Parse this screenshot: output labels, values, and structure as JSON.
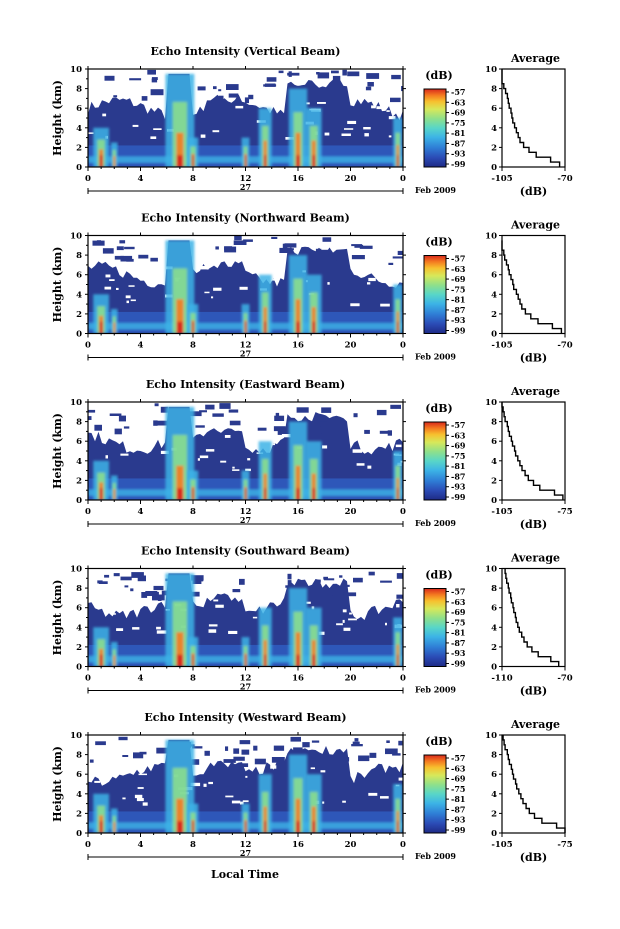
{
  "chart_data": {
    "type": "heatmap",
    "date_label": "Feb 2009",
    "day_label": "27",
    "xlabel": "Local Time",
    "ylabel": "Height (km)",
    "x_ticks": [
      "0",
      "4",
      "8",
      "12",
      "16",
      "20",
      "0"
    ],
    "y_ticks": [
      "0",
      "2",
      "4",
      "6",
      "8",
      "10"
    ],
    "xlim_hours": [
      0,
      24
    ],
    "ylim_km": [
      0,
      10
    ],
    "colorbar_unit": "(dB)",
    "colorbar_ticks": [
      "-57",
      "-63",
      "-69",
      "-75",
      "-81",
      "-87",
      "-93",
      "-99"
    ],
    "colorbar_range_db": [
      -99,
      -57
    ],
    "panels": [
      {
        "title": "Echo Intensity (Vertical Beam)",
        "average_title": "Average",
        "average_xlabel": "(dB)",
        "average_xlim": [
          -105,
          -70
        ],
        "average_xticks": [
          "-105",
          "-70"
        ],
        "average_profile": {
          "height_km": [
            0,
            0.5,
            1,
            1.5,
            2,
            2.5,
            3,
            3.5,
            4,
            4.5,
            5,
            5.5,
            6,
            6.5,
            7,
            7.5,
            8,
            8.5,
            9,
            9.5
          ],
          "db": [
            -73,
            -78,
            -86,
            -90,
            -93,
            -95,
            -96,
            -97,
            -98,
            -99,
            -99.5,
            -100,
            -101,
            -101.5,
            -102,
            -103,
            -104,
            -105,
            -105.5,
            -106
          ]
        }
      },
      {
        "title": "Echo Intensity (Northward Beam)",
        "average_title": "Average",
        "average_xlabel": "(dB)",
        "average_xlim": [
          -105,
          -70
        ],
        "average_xticks": [
          "-105",
          "-70"
        ],
        "average_profile": {
          "height_km": [
            0,
            0.5,
            1,
            1.5,
            2,
            2.5,
            3,
            3.5,
            4,
            4.5,
            5,
            5.5,
            6,
            6.5,
            7,
            7.5,
            8,
            8.5,
            9
          ],
          "db": [
            -72,
            -77,
            -85,
            -89,
            -92,
            -94,
            -95,
            -96,
            -97,
            -98.5,
            -99,
            -100,
            -101,
            -101.5,
            -102.5,
            -103.5,
            -104,
            -105,
            -105.5
          ]
        }
      },
      {
        "title": "Echo Intensity (Eastward Beam)",
        "average_title": "Average",
        "average_xlabel": "(dB)",
        "average_xlim": [
          -105,
          -75
        ],
        "average_xticks": [
          "-105",
          "-75"
        ],
        "average_profile": {
          "height_km": [
            0,
            0.5,
            1,
            1.5,
            2,
            2.5,
            3,
            3.5,
            4,
            4.5,
            5,
            5.5,
            6,
            6.5,
            7,
            7.5,
            8,
            8.5,
            9,
            9.5
          ],
          "db": [
            -76,
            -80,
            -87,
            -90,
            -92.5,
            -94,
            -95.5,
            -96.5,
            -97.5,
            -98.5,
            -99,
            -100,
            -100.5,
            -101.5,
            -102,
            -102.5,
            -103.5,
            -104,
            -104.5,
            -105
          ]
        }
      },
      {
        "title": "Echo Intensity (Southward Beam)",
        "average_title": "Average",
        "average_xlabel": "(dB)",
        "average_xlim": [
          -110,
          -70
        ],
        "average_xticks": [
          "-110",
          "-70"
        ],
        "average_profile": {
          "height_km": [
            0,
            0.5,
            1,
            1.5,
            2,
            2.5,
            3,
            3.5,
            4,
            4.5,
            5,
            5.5,
            6,
            6.5,
            7,
            7.5,
            8,
            8.5,
            9,
            9.5
          ],
          "db": [
            -74,
            -79,
            -87,
            -91,
            -94,
            -96,
            -97.5,
            -99,
            -100,
            -101,
            -101.5,
            -102.5,
            -103,
            -104,
            -104.5,
            -105.5,
            -106,
            -107,
            -107.5,
            -108
          ]
        }
      },
      {
        "title": "Echo Intensity (Westward Beam)",
        "average_title": "Average",
        "average_xlabel": "(dB)",
        "average_xlim": [
          -105,
          -75
        ],
        "average_xticks": [
          "-105",
          "-75"
        ],
        "average_profile": {
          "height_km": [
            0,
            0.5,
            1,
            1.5,
            2,
            2.5,
            3,
            3.5,
            4,
            4.5,
            5,
            5.5,
            6,
            6.5,
            7,
            7.5,
            8,
            8.5,
            9,
            9.5
          ],
          "db": [
            -75,
            -79,
            -86,
            -89.5,
            -92,
            -93.5,
            -95,
            -96,
            -97,
            -98,
            -98.5,
            -99.5,
            -100,
            -100.5,
            -101.5,
            -102,
            -102.5,
            -103.5,
            -104,
            -104.5
          ]
        }
      }
    ],
    "colors": {
      "background_echo": "#2a3a8e",
      "scale": [
        "#1e2a86",
        "#2b4bb5",
        "#2f7fd6",
        "#3cb3e6",
        "#58d6c8",
        "#8fe08a",
        "#d7e85a",
        "#f7c02e",
        "#f47a20",
        "#d8281c"
      ]
    }
  }
}
